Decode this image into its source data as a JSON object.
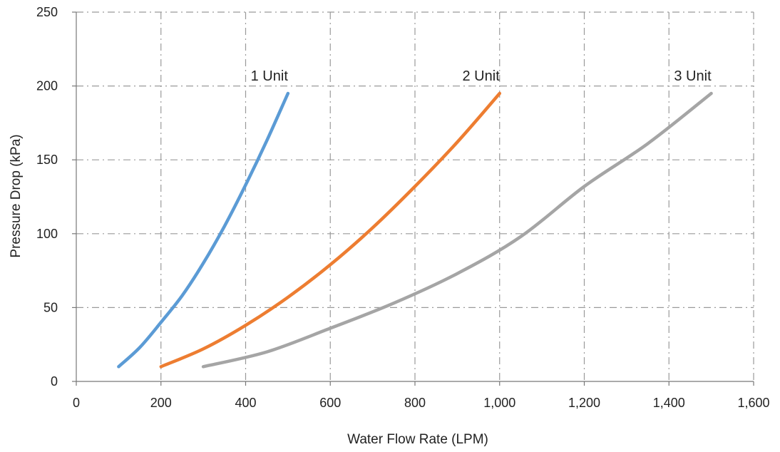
{
  "chart_data": {
    "type": "line",
    "title": "",
    "xlabel": "Water Flow Rate (LPM)",
    "ylabel": "Pressure Drop (kPa)",
    "xlim": [
      0,
      1600
    ],
    "ylim": [
      0,
      250
    ],
    "x_ticks": [
      0,
      200,
      400,
      600,
      800,
      1000,
      1200,
      1400,
      1600
    ],
    "x_tick_labels": [
      "0",
      "200",
      "400",
      "600",
      "800",
      "1,000",
      "1,200",
      "1,400",
      "1,600"
    ],
    "y_ticks": [
      0,
      50,
      100,
      150,
      200,
      250
    ],
    "y_tick_labels": [
      "0",
      "50",
      "100",
      "150",
      "200",
      "250"
    ],
    "grid": true,
    "legend": "none",
    "series": [
      {
        "name": "1 Unit",
        "color": "#5b9bd5",
        "points": [
          [
            100,
            10
          ],
          [
            150,
            23
          ],
          [
            200,
            40
          ],
          [
            250,
            58
          ],
          [
            300,
            80
          ],
          [
            350,
            105
          ],
          [
            400,
            133
          ],
          [
            450,
            163
          ],
          [
            500,
            195
          ]
        ]
      },
      {
        "name": "2 Unit",
        "color": "#ed7d31",
        "points": [
          [
            200,
            10
          ],
          [
            300,
            22
          ],
          [
            400,
            38
          ],
          [
            500,
            57
          ],
          [
            600,
            79
          ],
          [
            700,
            104
          ],
          [
            800,
            132
          ],
          [
            900,
            162
          ],
          [
            1000,
            195
          ]
        ]
      },
      {
        "name": "3 Unit",
        "color": "#a5a5a5",
        "points": [
          [
            300,
            10
          ],
          [
            450,
            20
          ],
          [
            600,
            36
          ],
          [
            750,
            53
          ],
          [
            900,
            73
          ],
          [
            1050,
            98
          ],
          [
            1200,
            132
          ],
          [
            1350,
            161
          ],
          [
            1500,
            195
          ]
        ]
      }
    ]
  }
}
